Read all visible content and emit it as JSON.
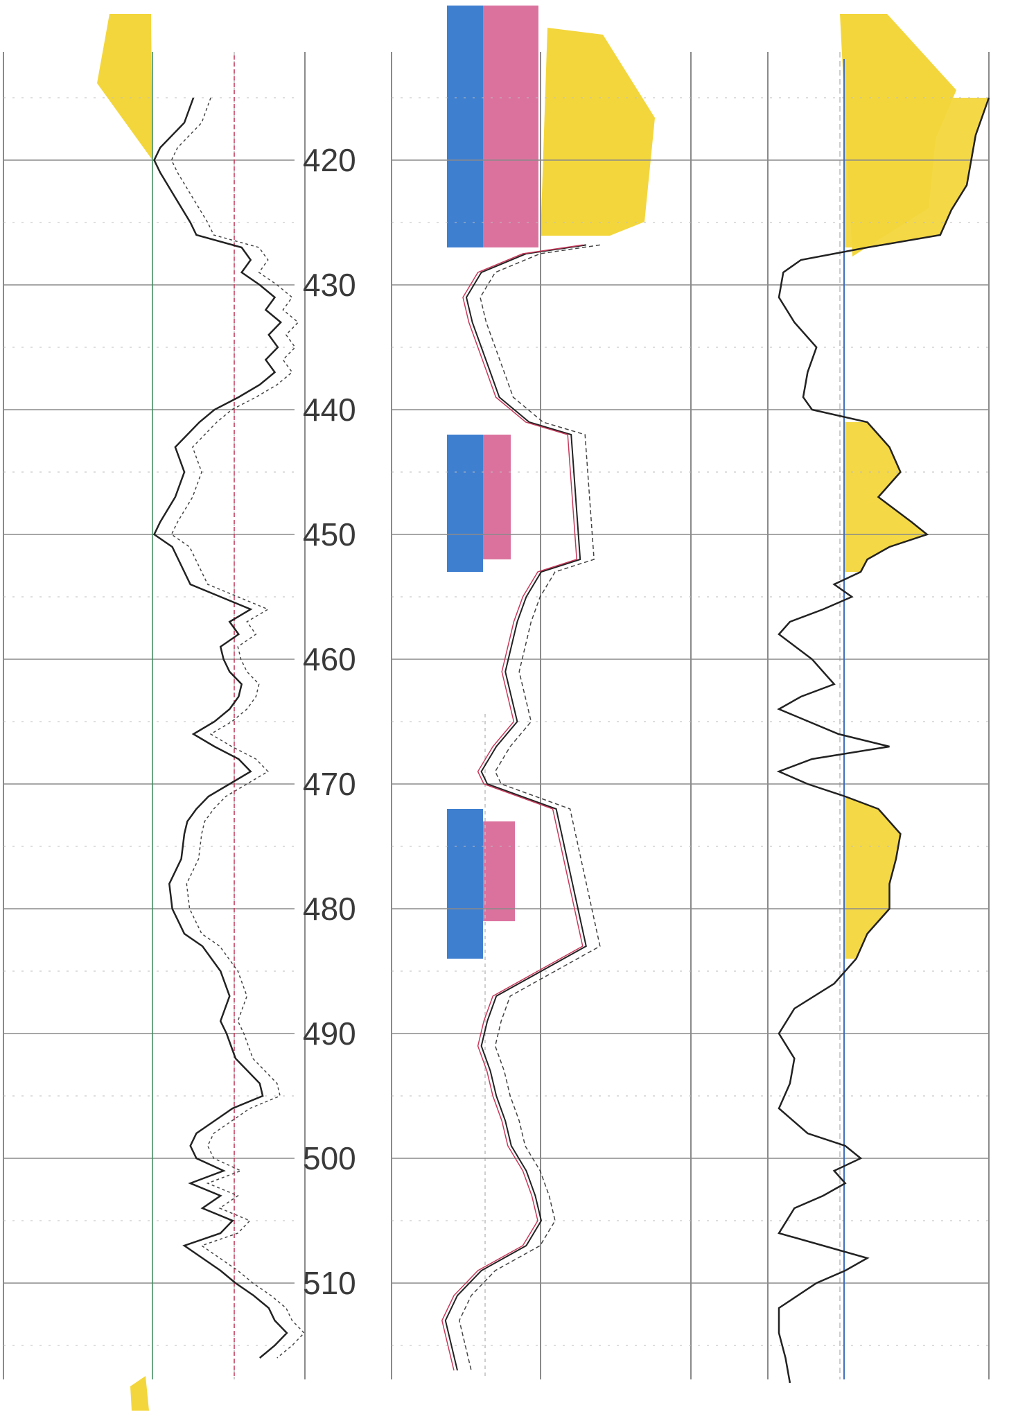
{
  "colors": {
    "sand_fill": "#f3d63c",
    "gamma_curve": "#222222",
    "dashed_curve": "#444444",
    "resistivity_red": "#c8395b",
    "blue_fill": "#3f7fd0",
    "pink_fill": "#d24f86",
    "grid": "#8a8a8a",
    "faint_grid": "#bdbdbd"
  },
  "chart_data": {
    "type": "line",
    "title": "",
    "xlabel": "",
    "ylabel": "",
    "grid": true,
    "depth_range": [
      411,
      518
    ],
    "depth_ticks": [
      420,
      430,
      440,
      450,
      460,
      470,
      480,
      490,
      500,
      510
    ],
    "depth_tick_labels": [
      "420",
      "430",
      "440",
      "450",
      "460",
      "470",
      "480",
      "490",
      "500",
      "510"
    ],
    "track1": {
      "series_curve": [
        [
          415,
          0.63
        ],
        [
          417,
          0.6
        ],
        [
          419,
          0.52
        ],
        [
          420,
          0.5
        ],
        [
          421,
          0.52
        ],
        [
          423,
          0.57
        ],
        [
          425,
          0.62
        ],
        [
          426,
          0.64
        ],
        [
          427,
          0.79
        ],
        [
          428,
          0.82
        ],
        [
          429,
          0.79
        ],
        [
          430,
          0.85
        ],
        [
          431,
          0.9
        ],
        [
          432,
          0.87
        ],
        [
          433,
          0.92
        ],
        [
          434,
          0.88
        ],
        [
          435,
          0.91
        ],
        [
          436,
          0.87
        ],
        [
          437,
          0.9
        ],
        [
          438,
          0.85
        ],
        [
          439,
          0.78
        ],
        [
          440,
          0.7
        ],
        [
          441,
          0.65
        ],
        [
          443,
          0.57
        ],
        [
          445,
          0.6
        ],
        [
          447,
          0.57
        ],
        [
          449,
          0.52
        ],
        [
          450,
          0.5
        ],
        [
          451,
          0.56
        ],
        [
          452,
          0.58
        ],
        [
          454,
          0.62
        ],
        [
          455,
          0.72
        ],
        [
          456,
          0.82
        ],
        [
          457,
          0.75
        ],
        [
          458,
          0.78
        ],
        [
          459,
          0.72
        ],
        [
          460,
          0.73
        ],
        [
          461,
          0.75
        ],
        [
          462,
          0.79
        ],
        [
          463,
          0.78
        ],
        [
          464,
          0.75
        ],
        [
          465,
          0.7
        ],
        [
          466,
          0.63
        ],
        [
          467,
          0.7
        ],
        [
          468,
          0.78
        ],
        [
          469,
          0.82
        ],
        [
          470,
          0.75
        ],
        [
          471,
          0.68
        ],
        [
          472,
          0.64
        ],
        [
          473,
          0.61
        ],
        [
          474,
          0.6
        ],
        [
          476,
          0.59
        ],
        [
          478,
          0.55
        ],
        [
          480,
          0.56
        ],
        [
          482,
          0.6
        ],
        [
          483,
          0.66
        ],
        [
          485,
          0.72
        ],
        [
          487,
          0.75
        ],
        [
          489,
          0.72
        ],
        [
          490,
          0.74
        ],
        [
          492,
          0.77
        ],
        [
          494,
          0.85
        ],
        [
          495,
          0.86
        ],
        [
          496,
          0.76
        ],
        [
          497,
          0.7
        ],
        [
          498,
          0.64
        ],
        [
          499,
          0.62
        ],
        [
          500,
          0.64
        ],
        [
          501,
          0.73
        ],
        [
          502,
          0.62
        ],
        [
          503,
          0.72
        ],
        [
          504,
          0.66
        ],
        [
          505,
          0.76
        ],
        [
          506,
          0.72
        ],
        [
          507,
          0.6
        ],
        [
          508,
          0.66
        ],
        [
          509,
          0.72
        ],
        [
          510,
          0.77
        ],
        [
          511,
          0.83
        ],
        [
          512,
          0.88
        ],
        [
          513,
          0.9
        ],
        [
          514,
          0.94
        ],
        [
          515,
          0.9
        ],
        [
          516,
          0.85
        ]
      ]
    },
    "track3": {
      "series_curve": [
        [
          426.8,
          0.65
        ],
        [
          427.5,
          0.45
        ],
        [
          429,
          0.3
        ],
        [
          431,
          0.25
        ],
        [
          433,
          0.27
        ],
        [
          435,
          0.3
        ],
        [
          437,
          0.33
        ],
        [
          439,
          0.36
        ],
        [
          441,
          0.46
        ],
        [
          442,
          0.6
        ],
        [
          452,
          0.63
        ],
        [
          453,
          0.5
        ],
        [
          455,
          0.45
        ],
        [
          457,
          0.42
        ],
        [
          459,
          0.4
        ],
        [
          461,
          0.38
        ],
        [
          463,
          0.4
        ],
        [
          465,
          0.42
        ],
        [
          467,
          0.35
        ],
        [
          469,
          0.3
        ],
        [
          470,
          0.32
        ],
        [
          472,
          0.55
        ],
        [
          483,
          0.65
        ],
        [
          485,
          0.5
        ],
        [
          487,
          0.35
        ],
        [
          489,
          0.32
        ],
        [
          491,
          0.3
        ],
        [
          493,
          0.33
        ],
        [
          495,
          0.35
        ],
        [
          497,
          0.38
        ],
        [
          499,
          0.4
        ],
        [
          501,
          0.45
        ],
        [
          503,
          0.48
        ],
        [
          505,
          0.5
        ],
        [
          507,
          0.45
        ],
        [
          509,
          0.3
        ],
        [
          511,
          0.22
        ],
        [
          513,
          0.18
        ],
        [
          515,
          0.2
        ],
        [
          517,
          0.22
        ]
      ],
      "blue_intervals": [
        [
          411,
          427
        ],
        [
          442,
          453
        ],
        [
          472,
          484
        ]
      ],
      "pink_intervals": [
        [
          411,
          427
        ],
        [
          442,
          452
        ],
        [
          473,
          481
        ]
      ]
    },
    "track4": {
      "series_curve": [
        [
          415,
          1.0
        ],
        [
          418,
          0.94
        ],
        [
          420,
          0.92
        ],
        [
          422,
          0.9
        ],
        [
          424,
          0.83
        ],
        [
          426,
          0.78
        ],
        [
          427,
          0.45
        ],
        [
          428,
          0.15
        ],
        [
          429,
          0.07
        ],
        [
          431,
          0.05
        ],
        [
          433,
          0.12
        ],
        [
          435,
          0.22
        ],
        [
          437,
          0.18
        ],
        [
          439,
          0.16
        ],
        [
          440,
          0.2
        ],
        [
          441,
          0.45
        ],
        [
          443,
          0.55
        ],
        [
          445,
          0.6
        ],
        [
          447,
          0.5
        ],
        [
          449,
          0.65
        ],
        [
          450,
          0.72
        ],
        [
          451,
          0.55
        ],
        [
          452,
          0.45
        ],
        [
          453,
          0.42
        ],
        [
          454,
          0.3
        ],
        [
          455,
          0.38
        ],
        [
          456,
          0.25
        ],
        [
          457,
          0.1
        ],
        [
          458,
          0.05
        ],
        [
          460,
          0.2
        ],
        [
          462,
          0.3
        ],
        [
          463,
          0.15
        ],
        [
          464,
          0.05
        ],
        [
          466,
          0.32
        ],
        [
          467,
          0.55
        ],
        [
          468,
          0.2
        ],
        [
          469,
          0.05
        ],
        [
          470,
          0.18
        ],
        [
          471,
          0.35
        ],
        [
          472,
          0.5
        ],
        [
          474,
          0.6
        ],
        [
          476,
          0.58
        ],
        [
          478,
          0.55
        ],
        [
          480,
          0.55
        ],
        [
          482,
          0.45
        ],
        [
          484,
          0.4
        ],
        [
          486,
          0.3
        ],
        [
          488,
          0.12
        ],
        [
          490,
          0.05
        ],
        [
          492,
          0.12
        ],
        [
          494,
          0.1
        ],
        [
          496,
          0.05
        ],
        [
          498,
          0.18
        ],
        [
          499,
          0.35
        ],
        [
          500,
          0.42
        ],
        [
          501,
          0.3
        ],
        [
          502,
          0.35
        ],
        [
          503,
          0.25
        ],
        [
          504,
          0.12
        ],
        [
          506,
          0.05
        ],
        [
          507,
          0.25
        ],
        [
          508,
          0.45
        ],
        [
          509,
          0.35
        ],
        [
          510,
          0.22
        ],
        [
          512,
          0.05
        ],
        [
          514,
          0.05
        ],
        [
          516,
          0.08
        ],
        [
          518,
          0.1
        ]
      ]
    }
  }
}
